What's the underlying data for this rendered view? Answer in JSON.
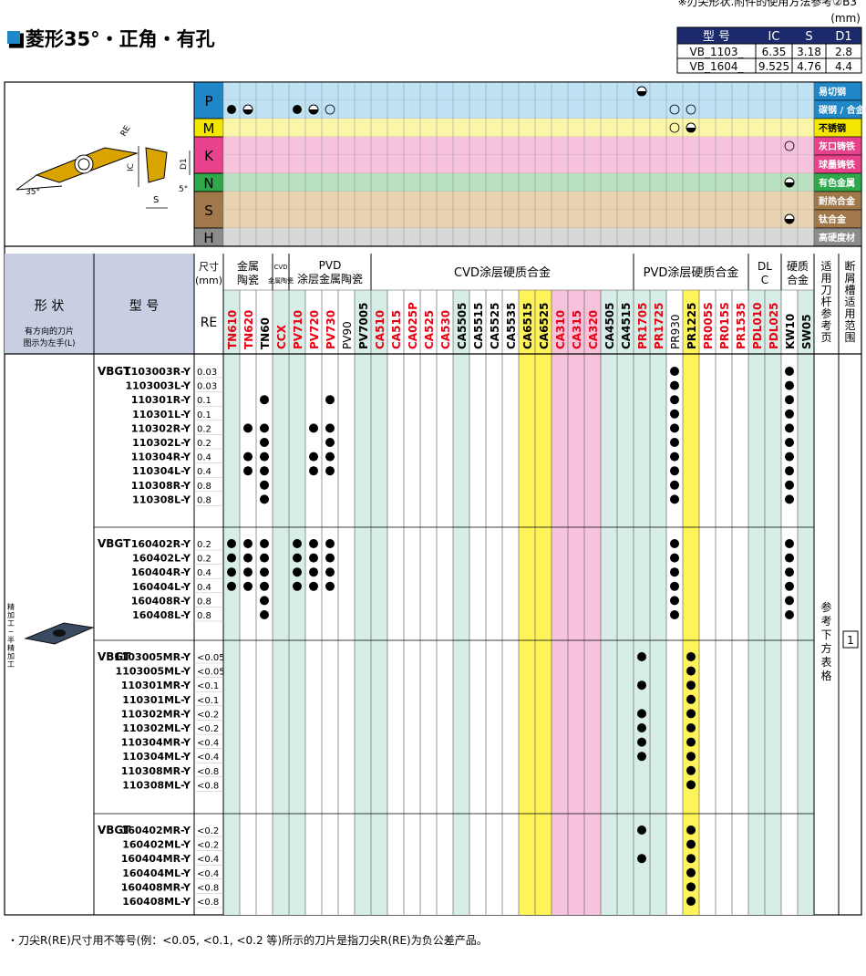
{
  "top_note": "※刃尖形状.附件的使用方法参考②B3",
  "title": "■菱形35°・正角・有孔",
  "unit_label": "(mm)",
  "dim_table": {
    "headers": [
      "型 号",
      "IC",
      "S",
      "D1"
    ],
    "rows": [
      [
        "VB_1103_",
        "6.35",
        "3.18",
        "2.8"
      ],
      [
        "VB_1604_",
        "9.525",
        "4.76",
        "4.4"
      ]
    ]
  },
  "diagram": {
    "re": "RE",
    "ic": "IC",
    "s": "S",
    "d1": "D1",
    "angle35": "35°",
    "angle5": "5°"
  },
  "materials": [
    {
      "code": "P",
      "color": "#1f86c8",
      "light": "#bfe3f5",
      "names": [
        "易切钢",
        "碳钢 / 合金钢"
      ]
    },
    {
      "code": "M",
      "color": "#f3e600",
      "light": "#fbf5a8",
      "names": [
        "不锈钢"
      ]
    },
    {
      "code": "K",
      "color": "#e8428c",
      "light": "#f7c3dc",
      "names": [
        "灰口铸铁",
        "球墨铸铁"
      ]
    },
    {
      "code": "N",
      "color": "#2ea84a",
      "light": "#b7dfc0",
      "names": [
        "有色金属"
      ]
    },
    {
      "code": "S",
      "color": "#a0784a",
      "light": "#e8d2b0",
      "names": [
        "耐热合金",
        "钛合金"
      ]
    },
    {
      "code": "H",
      "color": "#8c8c8c",
      "light": "#d8d8d8",
      "names": [
        "高硬度材"
      ]
    }
  ],
  "column_groups": [
    {
      "label": "金属陶瓷",
      "start": 0,
      "end": 2
    },
    {
      "label": "CVD 金属陶瓷",
      "start": 3,
      "end": 3
    },
    {
      "label": "PVD 涂层金属陶瓷",
      "start": 4,
      "end": 8
    },
    {
      "label": "CVD涂层硬质合金",
      "start": 9,
      "end": 24
    },
    {
      "label": "PVD涂层硬质合金",
      "start": 25,
      "end": 31
    },
    {
      "label": "DLC",
      "start": 32,
      "end": 33
    },
    {
      "label": "硬质合金",
      "start": 34,
      "end": 35
    }
  ],
  "grades": [
    {
      "name": "TN610",
      "color": "#e60012",
      "bg": "#d7ede7"
    },
    {
      "name": "TN620",
      "color": "#e60012",
      "bg": "#ffffff"
    },
    {
      "name": "TN60",
      "color": "#000000",
      "bg": "#ffffff"
    },
    {
      "name": "CCX",
      "color": "#e60012",
      "bg": "#d7ede7"
    },
    {
      "name": "PV710",
      "color": "#e60012",
      "bg": "#d7ede7"
    },
    {
      "name": "PV720",
      "color": "#e60012",
      "bg": "#ffffff"
    },
    {
      "name": "PV730",
      "color": "#e60012",
      "bg": "#ffffff"
    },
    {
      "name": "PV90",
      "color": "#000000",
      "bg": "#ffffff",
      "light": true
    },
    {
      "name": "PV7005",
      "color": "#000000",
      "bg": "#d7ede7"
    },
    {
      "name": "CA510",
      "color": "#e60012",
      "bg": "#d7ede7"
    },
    {
      "name": "CA515",
      "color": "#e60012",
      "bg": "#ffffff"
    },
    {
      "name": "CA025P",
      "color": "#e60012",
      "bg": "#ffffff"
    },
    {
      "name": "CA525",
      "color": "#e60012",
      "bg": "#ffffff"
    },
    {
      "name": "CA530",
      "color": "#e60012",
      "bg": "#ffffff"
    },
    {
      "name": "CA5505",
      "color": "#000000",
      "bg": "#d7ede7"
    },
    {
      "name": "CA5515",
      "color": "#000000",
      "bg": "#ffffff"
    },
    {
      "name": "CA5525",
      "color": "#000000",
      "bg": "#ffffff"
    },
    {
      "name": "CA5535",
      "color": "#000000",
      "bg": "#ffffff"
    },
    {
      "name": "CA6515",
      "color": "#000000",
      "bg": "#fff35a"
    },
    {
      "name": "CA6525",
      "color": "#000000",
      "bg": "#fff35a"
    },
    {
      "name": "CA310",
      "color": "#e60012",
      "bg": "#f7c3dc"
    },
    {
      "name": "CA315",
      "color": "#e60012",
      "bg": "#f7c3dc"
    },
    {
      "name": "CA320",
      "color": "#e60012",
      "bg": "#f7c3dc"
    },
    {
      "name": "CA4505",
      "color": "#000000",
      "bg": "#d7ede7"
    },
    {
      "name": "CA4515",
      "color": "#000000",
      "bg": "#d7ede7"
    },
    {
      "name": "PR1705",
      "color": "#e60012",
      "bg": "#d7ede7"
    },
    {
      "name": "PR1725",
      "color": "#e60012",
      "bg": "#d7ede7"
    },
    {
      "name": "PR930",
      "color": "#000000",
      "bg": "#ffffff",
      "light": true
    },
    {
      "name": "PR1225",
      "color": "#000000",
      "bg": "#fff35a"
    },
    {
      "name": "PR005S",
      "color": "#e60012",
      "bg": "#ffffff"
    },
    {
      "name": "PR015S",
      "color": "#e60012",
      "bg": "#ffffff"
    },
    {
      "name": "PR1535",
      "color": "#e60012",
      "bg": "#ffffff"
    },
    {
      "name": "PDL010",
      "color": "#e60012",
      "bg": "#d7ede7"
    },
    {
      "name": "PDL025",
      "color": "#e60012",
      "bg": "#d7ede7"
    },
    {
      "name": "KW10",
      "color": "#000000",
      "bg": "#ffffff"
    },
    {
      "name": "SW05",
      "color": "#000000",
      "bg": "#d7ede7"
    }
  ],
  "header_labels": {
    "shape": "形 状",
    "shape_note": "有方向的刀片 图示为左手(L)",
    "model": "型 号",
    "size": "尺寸 (mm)",
    "re": "RE",
    "holder": "适用刀杆参考页",
    "chipbreaker": "断屑槽适用范围"
  },
  "application": "精加工~半精加工",
  "holder_ref": "参考下方表格",
  "range_badge": "1",
  "groups": [
    {
      "rows": [
        [
          "VBGT",
          "1103003R-Y",
          "0.03",
          []
        ],
        [
          "",
          "1103003L-Y",
          "0.03",
          []
        ],
        [
          "",
          "110301R-Y",
          "0.1",
          [
            2,
            6
          ]
        ],
        [
          "",
          "110301L-Y",
          "0.1",
          []
        ],
        [
          "",
          "110302R-Y",
          "0.2",
          [
            1,
            2,
            5,
            6
          ]
        ],
        [
          "",
          "110302L-Y",
          "0.2",
          [
            2,
            6
          ]
        ],
        [
          "",
          "110304R-Y",
          "0.4",
          [
            1,
            2,
            5,
            6
          ]
        ],
        [
          "",
          "110304L-Y",
          "0.4",
          [
            1,
            2,
            5,
            6
          ]
        ],
        [
          "",
          "110308R-Y",
          "0.8",
          [
            2
          ]
        ],
        [
          "",
          "110308L-Y",
          "0.8",
          [
            2
          ]
        ]
      ]
    },
    {
      "rows": [
        [
          "VBGT",
          "160402R-Y",
          "0.2",
          [
            0,
            1,
            2,
            4,
            5,
            6
          ]
        ],
        [
          "",
          "160402L-Y",
          "0.2",
          [
            0,
            1,
            2,
            4,
            5,
            6
          ]
        ],
        [
          "",
          "160404R-Y",
          "0.4",
          [
            0,
            1,
            2,
            4,
            5,
            6
          ]
        ],
        [
          "",
          "160404L-Y",
          "0.4",
          [
            0,
            1,
            2,
            4,
            5,
            6
          ]
        ],
        [
          "",
          "160408R-Y",
          "0.8",
          [
            2
          ]
        ],
        [
          "",
          "160408L-Y",
          "0.8",
          [
            2
          ]
        ]
      ]
    },
    {
      "rows": [
        [
          "VBGT",
          "1103005MR-Y",
          "<0.05",
          [
            25,
            28
          ]
        ],
        [
          "",
          "1103005ML-Y",
          "<0.05",
          [
            28
          ]
        ],
        [
          "",
          "110301MR-Y",
          "<0.1",
          [
            25,
            28
          ]
        ],
        [
          "",
          "110301ML-Y",
          "<0.1",
          [
            28
          ]
        ],
        [
          "",
          "110302MR-Y",
          "<0.2",
          [
            25,
            28
          ]
        ],
        [
          "",
          "110302ML-Y",
          "<0.2",
          [
            25,
            28
          ]
        ],
        [
          "",
          "110304MR-Y",
          "<0.4",
          [
            25,
            28
          ]
        ],
        [
          "",
          "110304ML-Y",
          "<0.4",
          [
            25,
            28
          ]
        ],
        [
          "",
          "110308MR-Y",
          "<0.8",
          [
            28
          ]
        ],
        [
          "",
          "110308ML-Y",
          "<0.8",
          [
            28
          ]
        ]
      ]
    },
    {
      "rows": [
        [
          "VBGT",
          "160402MR-Y",
          "<0.2",
          [
            25,
            28
          ]
        ],
        [
          "",
          "160402ML-Y",
          "<0.2",
          [
            28
          ]
        ],
        [
          "",
          "160404MR-Y",
          "<0.4",
          [
            25,
            28
          ]
        ],
        [
          "",
          "160404ML-Y",
          "<0.4",
          [
            28
          ]
        ],
        [
          "",
          "160408MR-Y",
          "<0.8",
          [
            28
          ]
        ],
        [
          "",
          "160408ML-Y",
          "<0.8",
          [
            28
          ]
        ]
      ]
    }
  ],
  "footnote": "・刀尖R(RE)尺寸用不等号(例：<0.05, <0.1, <0.2 等)所示的刀片是指刀尖R(RE)为负公差产品。"
}
